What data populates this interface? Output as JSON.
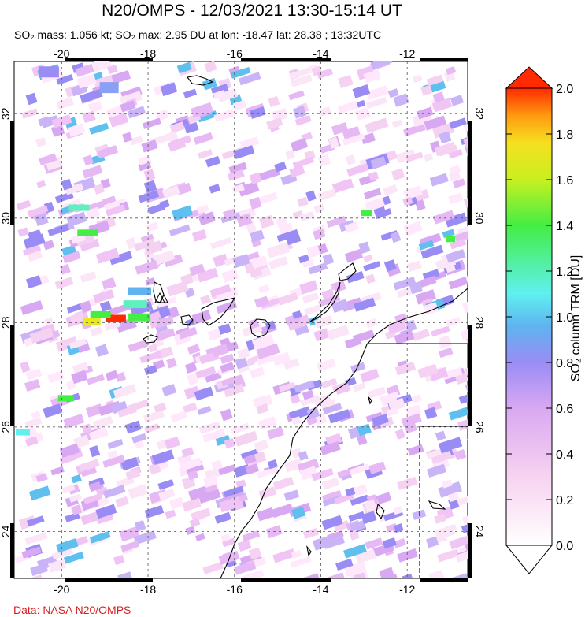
{
  "header": {
    "title": "N20/OMPS - 12/03/2021 13:30-15:14 UT",
    "subtitle": "SO₂ mass: 1.056 kt; SO₂ max: 2.95 DU at lon: -18.47 lat: 28.38 ; 13:32UTC"
  },
  "map": {
    "lon_ticks": [
      "-20",
      "-18",
      "-16",
      "-14",
      "-12"
    ],
    "lat_ticks": [
      "32",
      "30",
      "28",
      "26",
      "24"
    ],
    "lon_range": [
      -21.1,
      -10.6
    ],
    "lat_range": [
      23.1,
      33.0
    ],
    "grid": true,
    "volcano_marker": {
      "lon": -17.85,
      "lat": 28.55,
      "symbol": "volcano-triangle-icon"
    }
  },
  "colorbar": {
    "title": "SO₂ column TRM [DU]",
    "tick_labels": [
      "2.0",
      "1.8",
      "1.6",
      "1.4",
      "1.2",
      "1.0",
      "0.8",
      "0.6",
      "0.4",
      "0.2",
      "0.0"
    ],
    "range": [
      0.0,
      2.0
    ],
    "overflow_color": "#ff2a00",
    "underflow_color": "#ffffff"
  },
  "footer": {
    "credit": "Data: NASA N20/OMPS"
  },
  "colors": {
    "credit": "#d62020",
    "gridline": "#555555"
  }
}
